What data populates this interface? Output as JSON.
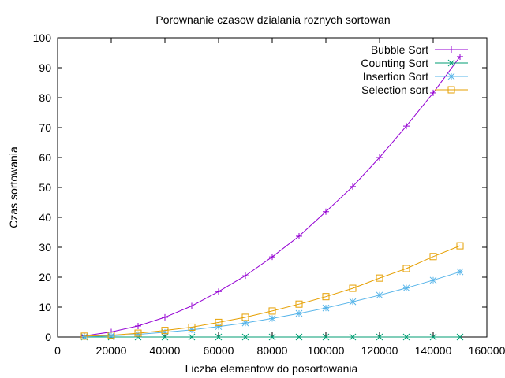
{
  "chart_data": {
    "type": "line",
    "title": "Porownanie czasow dzialania roznych sortowan",
    "xlabel": "Liczba elementow do posortowania",
    "ylabel": "Czas sortowania",
    "xlim": [
      0,
      160000
    ],
    "ylim": [
      0,
      100
    ],
    "xticks": [
      0,
      20000,
      40000,
      60000,
      80000,
      100000,
      120000,
      140000,
      160000
    ],
    "yticks": [
      0,
      10,
      20,
      30,
      40,
      50,
      60,
      70,
      80,
      90,
      100
    ],
    "grid": false,
    "legend_position": "top-right",
    "x": [
      10000,
      20000,
      30000,
      40000,
      50000,
      60000,
      70000,
      80000,
      90000,
      100000,
      110000,
      120000,
      130000,
      140000,
      150000
    ],
    "series": [
      {
        "name": "Bubble Sort",
        "color": "#9400d3",
        "marker": "plus",
        "values": [
          0.4,
          1.7,
          3.7,
          6.6,
          10.4,
          15.2,
          20.5,
          26.8,
          33.7,
          41.9,
          50.3,
          60.0,
          70.5,
          81.6,
          93.7
        ]
      },
      {
        "name": "Counting Sort",
        "color": "#009e73",
        "marker": "cross",
        "values": [
          0,
          0,
          0,
          0,
          0,
          0,
          0,
          0,
          0,
          0,
          0,
          0,
          0,
          0,
          0
        ]
      },
      {
        "name": "Insertion Sort",
        "color": "#56b4e9",
        "marker": "star",
        "values": [
          0.1,
          0.4,
          0.9,
          1.6,
          2.4,
          3.5,
          4.7,
          6.2,
          7.9,
          9.7,
          11.8,
          14.0,
          16.4,
          19.0,
          21.8
        ]
      },
      {
        "name": "Selection sort",
        "color": "#e69f00",
        "marker": "square",
        "values": [
          0.3,
          0.6,
          1.3,
          2.2,
          3.3,
          4.9,
          6.6,
          8.7,
          11.0,
          13.5,
          16.3,
          19.7,
          22.9,
          26.9,
          30.5
        ]
      }
    ]
  }
}
